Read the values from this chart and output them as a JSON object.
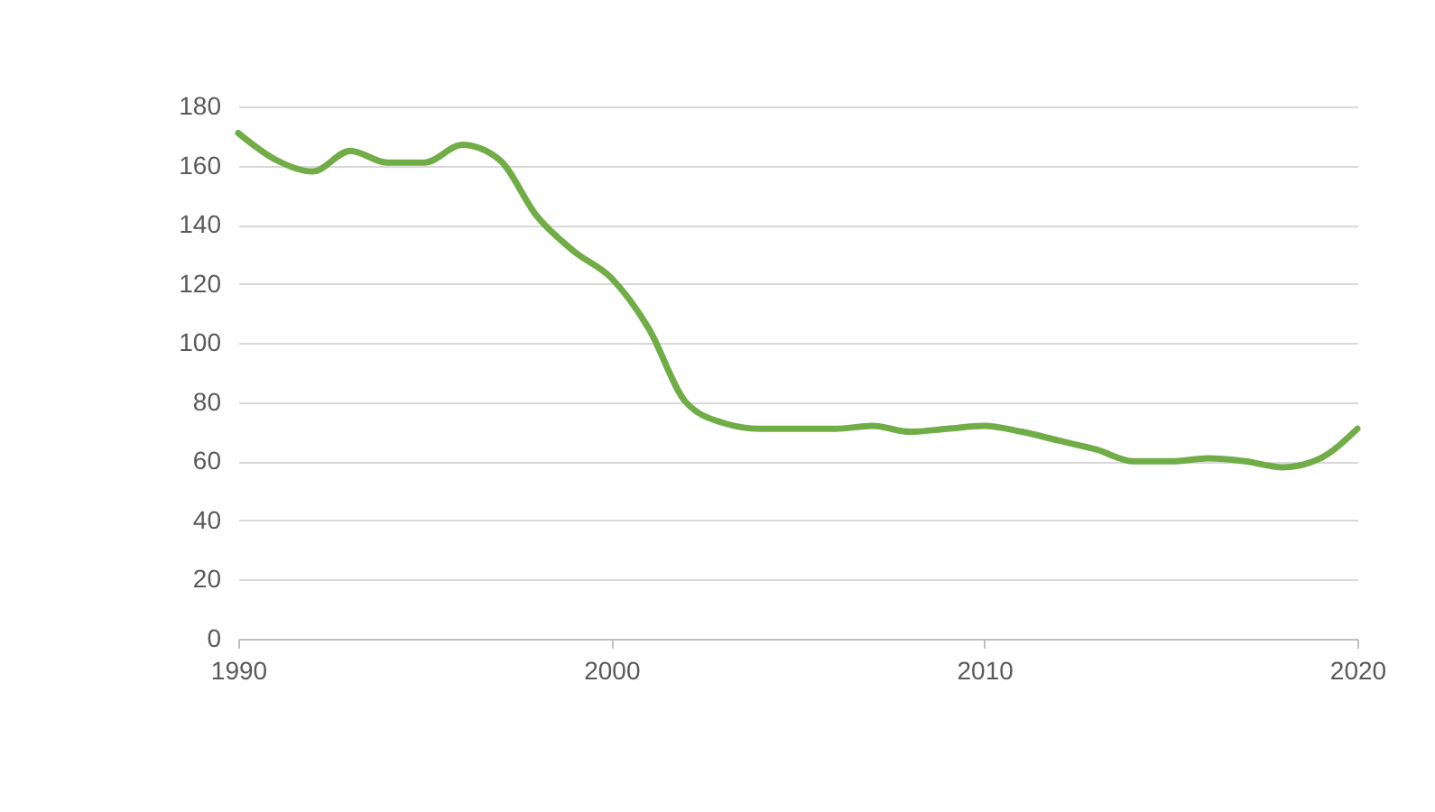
{
  "chart_data": {
    "type": "line",
    "x": [
      1990,
      1991,
      1992,
      1993,
      1994,
      1995,
      1996,
      1997,
      1998,
      1999,
      2000,
      2001,
      2002,
      2003,
      2004,
      2005,
      2006,
      2007,
      2008,
      2009,
      2010,
      2011,
      2012,
      2013,
      2014,
      2015,
      2016,
      2017,
      2018,
      2019,
      2020
    ],
    "series": [
      {
        "color": "#70ad47",
        "values": [
          171,
          162,
          158,
          165,
          161,
          161,
          167,
          162,
          143,
          131,
          122,
          105,
          80,
          73,
          71,
          71,
          71,
          72,
          70,
          71,
          72,
          70,
          67,
          64,
          60,
          60,
          61,
          60,
          58,
          61,
          71
        ]
      }
    ],
    "xlim": [
      1990,
      2020
    ],
    "xticks": [
      1990,
      2000,
      2010,
      2020
    ],
    "ylim": [
      0,
      180
    ],
    "yticks": [
      0,
      20,
      40,
      60,
      80,
      100,
      120,
      140,
      160,
      180
    ],
    "grid": "y",
    "marker": "none",
    "line_style": "solid"
  }
}
